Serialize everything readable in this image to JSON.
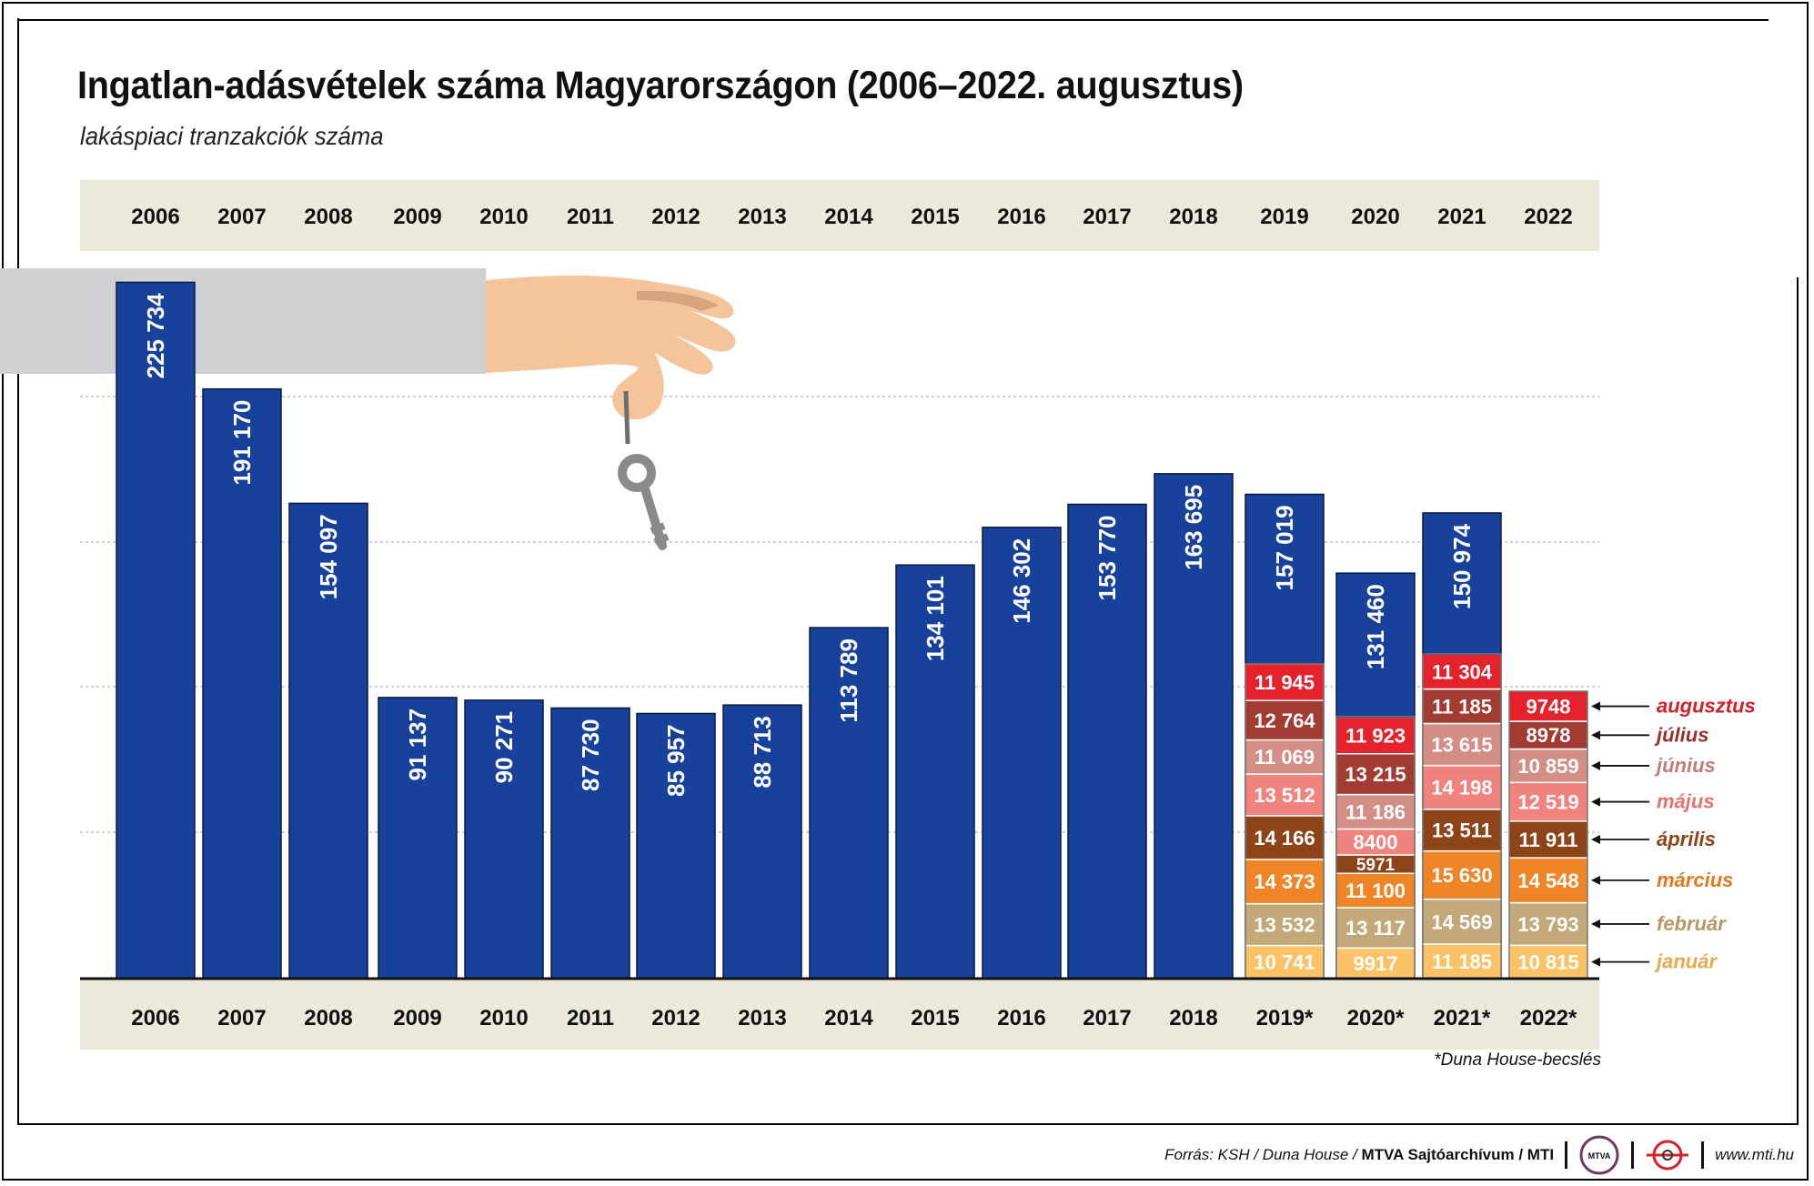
{
  "title": "Ingatlan-adásvételek száma Magyarországon (2006–2022. augusztus)",
  "subtitle": "lakáspiaci tranzakciók száma",
  "footnote": "*Duna House-becslés",
  "footer": {
    "source_prefix": "Forrás: KSH / Duna House /",
    "source_bold": "MTVA Sajtóarchívum / MTI",
    "website": "www.mti.hu",
    "logo1_text": "MTVA"
  },
  "colors": {
    "annual_bar": "#17419a",
    "band": "#ebe8dc",
    "gridline": "#b9b9b9",
    "hand": "#f6c49b",
    "sleeve": "#cfd0d2",
    "key": "#8a8a8a"
  },
  "months": [
    {
      "name": "január",
      "color": "#fcc267",
      "text_color": "#e8a84e"
    },
    {
      "name": "február",
      "color": "#c3a87a",
      "text_color": "#b49966"
    },
    {
      "name": "március",
      "color": "#ee8628",
      "text_color": "#e07a1f"
    },
    {
      "name": "április",
      "color": "#8d4419",
      "text_color": "#8d4419"
    },
    {
      "name": "május",
      "color": "#f0837d",
      "text_color": "#e9716b"
    },
    {
      "name": "június",
      "color": "#d38f86",
      "text_color": "#c27e76"
    },
    {
      "name": "július",
      "color": "#a23b32",
      "text_color": "#9a3128"
    },
    {
      "name": "augusztus",
      "color": "#e3222c",
      "text_color": "#d51e27"
    }
  ],
  "chart_data": {
    "type": "bar",
    "title": "Ingatlan-adásvételek száma Magyarországon (2006–2022. augusztus)",
    "subtitle": "lakáspiaci tranzakciók száma",
    "categories_top": [
      "2006",
      "2007",
      "2008",
      "2009",
      "2010",
      "2011",
      "2012",
      "2013",
      "2014",
      "2015",
      "2016",
      "2017",
      "2018",
      "2019",
      "2020",
      "2021",
      "2022"
    ],
    "categories_bottom": [
      "2006",
      "2007",
      "2008",
      "2009",
      "2010",
      "2011",
      "2012",
      "2013",
      "2014",
      "2015",
      "2016",
      "2017",
      "2018",
      "2019*",
      "2020*",
      "2021*",
      "2022*"
    ],
    "annual": [
      {
        "year": "2006",
        "value": 225734,
        "label": "225 734"
      },
      {
        "year": "2007",
        "value": 191170,
        "label": "191 170"
      },
      {
        "year": "2008",
        "value": 154097,
        "label": "154 097"
      },
      {
        "year": "2009",
        "value": 91137,
        "label": "91 137"
      },
      {
        "year": "2010",
        "value": 90271,
        "label": "90 271"
      },
      {
        "year": "2011",
        "value": 87730,
        "label": "87 730"
      },
      {
        "year": "2012",
        "value": 85957,
        "label": "85 957"
      },
      {
        "year": "2013",
        "value": 88713,
        "label": "88 713"
      },
      {
        "year": "2014",
        "value": 113789,
        "label": "113 789"
      },
      {
        "year": "2015",
        "value": 134101,
        "label": "134 101"
      },
      {
        "year": "2016",
        "value": 146302,
        "label": "146 302"
      },
      {
        "year": "2017",
        "value": 153770,
        "label": "153 770"
      },
      {
        "year": "2018",
        "value": 163695,
        "label": "163 695"
      },
      {
        "year": "2019*",
        "value": 157019,
        "label": "157 019"
      },
      {
        "year": "2020*",
        "value": 131460,
        "label": "131 460"
      },
      {
        "year": "2021*",
        "value": 150974,
        "label": "150 974"
      },
      {
        "year": "2022*",
        "value": null,
        "label": ""
      }
    ],
    "monthly": [
      {
        "year": "2019*",
        "values": [
          10741,
          13532,
          14373,
          14166,
          13512,
          11069,
          12764,
          11945
        ],
        "labels": [
          "10 741",
          "13 532",
          "14 373",
          "14 166",
          "13 512",
          "11 069",
          "12 764",
          "11 945"
        ]
      },
      {
        "year": "2020*",
        "values": [
          9917,
          13117,
          11100,
          5971,
          8400,
          11186,
          13215,
          11923
        ],
        "labels": [
          "9917",
          "13 117",
          "11 100",
          "5971",
          "8400",
          "11 186",
          "13 215",
          "11 923"
        ]
      },
      {
        "year": "2021*",
        "values": [
          11185,
          14569,
          15630,
          13511,
          14198,
          13615,
          11185,
          11304
        ],
        "labels": [
          "11 185",
          "14 569",
          "15 630",
          "13 511",
          "14 198",
          "13 615",
          "11 185",
          "11 304"
        ]
      },
      {
        "year": "2022*",
        "values": [
          10815,
          13793,
          14548,
          11911,
          12519,
          10859,
          8978,
          9748
        ],
        "labels": [
          "10 815",
          "13 793",
          "14 548",
          "11 911",
          "12 519",
          "10 859",
          "8978",
          "9748"
        ]
      }
    ],
    "ylim": [
      0,
      225734
    ],
    "grid": true,
    "legend_placement": "right"
  }
}
